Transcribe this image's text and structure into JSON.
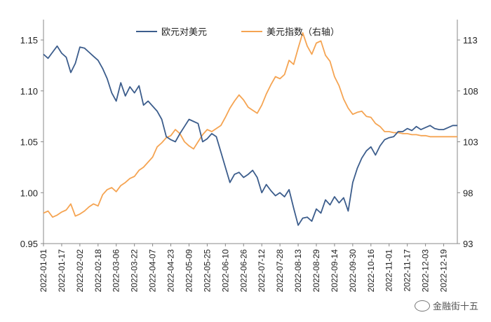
{
  "chart_data": {
    "type": "line",
    "title": "",
    "legend_position": "top-center",
    "x_tick_labels": [
      "2022-01-01",
      "2022-01-17",
      "2022-02-02",
      "2022-02-18",
      "2022-03-06",
      "2022-03-22",
      "2022-04-07",
      "2022-04-23",
      "2022-05-09",
      "2022-05-25",
      "2022-06-10",
      "2022-06-26",
      "2022-07-12",
      "2022-07-28",
      "2022-08-13",
      "2022-08-29",
      "2022-09-14",
      "2022-09-30",
      "2022-10-16",
      "2022-11-01",
      "2022-11-17",
      "2022-12-03",
      "2022-12-19"
    ],
    "left_axis": {
      "ylim": [
        0.95,
        1.17
      ],
      "ticks": [
        "0.95",
        "1.00",
        "1.05",
        "1.10",
        "1.15"
      ],
      "tick_values": [
        0.95,
        1.0,
        1.05,
        1.1,
        1.15
      ]
    },
    "right_axis": {
      "ylim": [
        93,
        115
      ],
      "ticks": [
        "93",
        "98",
        "103",
        "108",
        "113"
      ],
      "tick_values": [
        93,
        98,
        103,
        108,
        113
      ]
    },
    "series": [
      {
        "name": "欧元对美元",
        "axis": "left",
        "color": "#3c5d8c",
        "x": [
          0,
          4,
          8,
          12,
          16,
          20,
          24,
          28,
          32,
          36,
          40,
          44,
          48,
          52,
          56,
          60,
          64,
          68,
          72,
          76,
          80,
          84,
          88,
          92,
          96,
          100,
          104,
          108,
          112,
          116,
          120,
          124,
          128,
          132,
          136,
          140,
          144,
          148,
          152,
          156,
          160,
          164,
          168,
          172,
          176,
          180,
          184,
          188,
          192,
          196,
          200,
          204,
          208,
          212,
          216,
          220,
          224,
          228,
          232,
          236,
          240,
          244,
          248,
          252,
          256,
          260,
          264,
          268,
          272,
          276,
          280,
          284,
          288,
          292,
          296,
          300,
          304,
          308,
          312,
          316,
          320,
          324,
          328,
          332,
          336,
          340,
          344,
          348,
          352,
          356,
          360,
          364
        ],
        "values": [
          1.136,
          1.132,
          1.138,
          1.144,
          1.137,
          1.133,
          1.118,
          1.127,
          1.143,
          1.142,
          1.138,
          1.134,
          1.13,
          1.122,
          1.112,
          1.098,
          1.09,
          1.108,
          1.095,
          1.104,
          1.098,
          1.105,
          1.086,
          1.09,
          1.085,
          1.08,
          1.072,
          1.055,
          1.052,
          1.05,
          1.058,
          1.065,
          1.072,
          1.07,
          1.068,
          1.05,
          1.053,
          1.058,
          1.055,
          1.04,
          1.025,
          1.01,
          1.018,
          1.02,
          1.015,
          1.018,
          1.022,
          1.015,
          1.0,
          1.008,
          1.002,
          0.997,
          1.0,
          0.996,
          1.003,
          0.985,
          0.968,
          0.975,
          0.976,
          0.972,
          0.984,
          0.98,
          0.993,
          0.988,
          0.996,
          0.99,
          0.995,
          0.982,
          1.01,
          1.024,
          1.034,
          1.041,
          1.045,
          1.037,
          1.046,
          1.052,
          1.054,
          1.055,
          1.06,
          1.06,
          1.063,
          1.061,
          1.065,
          1.062,
          1.064,
          1.066,
          1.063,
          1.062,
          1.062,
          1.064,
          1.066,
          1.066
        ]
      },
      {
        "name": "美元指数（右轴）",
        "axis": "right",
        "color": "#f5a452",
        "x": [
          0,
          4,
          8,
          12,
          16,
          20,
          24,
          28,
          32,
          36,
          40,
          44,
          48,
          52,
          56,
          60,
          64,
          68,
          72,
          76,
          80,
          84,
          88,
          92,
          96,
          100,
          104,
          108,
          112,
          116,
          120,
          124,
          128,
          132,
          136,
          140,
          144,
          148,
          152,
          156,
          160,
          164,
          168,
          172,
          176,
          180,
          184,
          188,
          192,
          196,
          200,
          204,
          208,
          212,
          216,
          220,
          224,
          228,
          232,
          236,
          240,
          244,
          248,
          252,
          256,
          260,
          264,
          268,
          272,
          276,
          280,
          284,
          288,
          292,
          296,
          300,
          304,
          308,
          312,
          316,
          320,
          324,
          328,
          332,
          336,
          340,
          344,
          348,
          352,
          356,
          360,
          364
        ],
        "values": [
          96.0,
          96.2,
          95.6,
          95.8,
          96.1,
          96.3,
          96.9,
          95.7,
          95.9,
          96.2,
          96.6,
          96.9,
          96.7,
          97.8,
          98.3,
          98.5,
          98.1,
          98.7,
          99.0,
          99.4,
          99.6,
          100.2,
          100.5,
          101.0,
          101.5,
          102.5,
          102.9,
          103.4,
          103.6,
          104.2,
          103.8,
          103.0,
          102.6,
          102.3,
          103.0,
          103.7,
          104.2,
          104.0,
          104.3,
          104.6,
          105.4,
          106.3,
          107.0,
          107.6,
          107.1,
          106.4,
          106.1,
          105.8,
          106.6,
          107.7,
          108.6,
          109.4,
          109.2,
          109.6,
          111.0,
          110.6,
          112.2,
          113.7,
          112.4,
          111.6,
          112.7,
          112.9,
          111.5,
          110.9,
          109.4,
          108.5,
          107.2,
          106.3,
          105.7,
          105.9,
          106.0,
          105.5,
          105.4,
          104.8,
          104.5,
          104.0,
          104.0,
          103.9,
          103.9,
          103.8,
          103.8,
          103.7,
          103.7,
          103.6,
          103.6,
          103.5,
          103.5,
          103.5,
          103.5,
          103.5,
          103.5,
          103.5
        ]
      }
    ]
  },
  "watermark": {
    "text": "金融街十五",
    "icon": "wechat-icon"
  }
}
